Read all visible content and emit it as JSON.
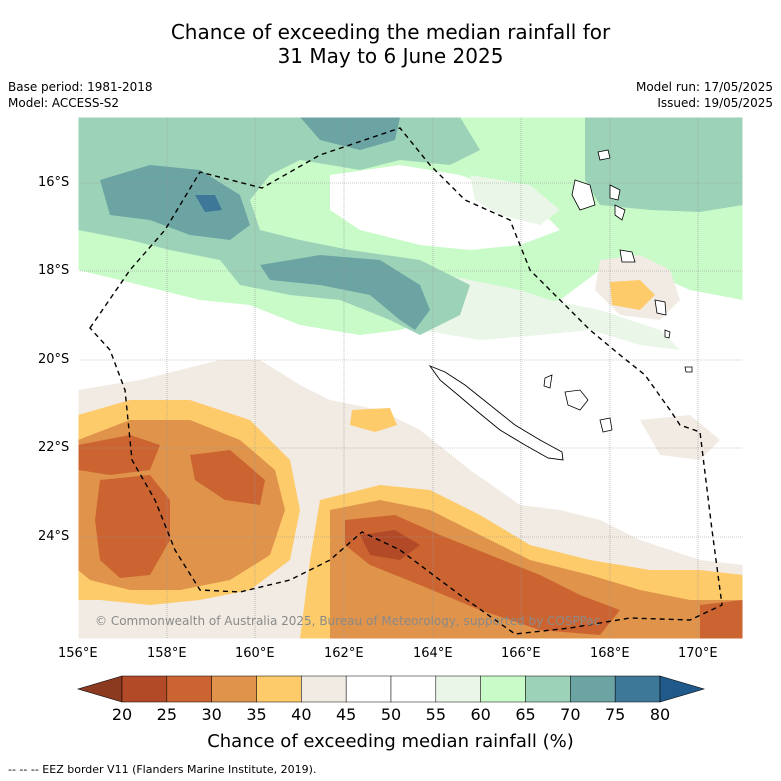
{
  "title": {
    "line1": "Chance of exceeding the median rainfall for",
    "line2": "31 May to 6 June 2025"
  },
  "meta": {
    "base_period": "Base period: 1981-2018",
    "model": "Model: ACCESS-S2",
    "model_run": "Model run: 17/05/2025",
    "issued": "Issued: 19/05/2025"
  },
  "map": {
    "lat_labels": [
      "16°S",
      "18°S",
      "20°S",
      "22°S",
      "24°S"
    ],
    "lon_labels": [
      "156°E",
      "158°E",
      "160°E",
      "162°E",
      "164°E",
      "166°E",
      "168°E",
      "170°E"
    ],
    "copyright": "© Commonwealth of Australia 2025, Bureau of Meteorology, supported by COSPPac",
    "boundary_style": "dashed",
    "land_outline_color": "#000000"
  },
  "colorbar": {
    "title": "Chance of exceeding median rainfall (%)",
    "labels": [
      "20",
      "25",
      "30",
      "35",
      "40",
      "45",
      "50",
      "55",
      "60",
      "65",
      "70",
      "75",
      "80"
    ],
    "colors": [
      "#8b3a1f",
      "#b24a28",
      "#cb6430",
      "#e0934a",
      "#fecb6a",
      "#f1ebe4",
      "#ffffff",
      "#ffffff",
      "#eaf6e8",
      "#c8fbc8",
      "#9cd3b8",
      "#6ba4a3",
      "#3d7899",
      "#1f5a8a"
    ]
  },
  "footnote": "-- -- -- EEZ border V11 (Flanders Marine Institute, 2019)."
}
